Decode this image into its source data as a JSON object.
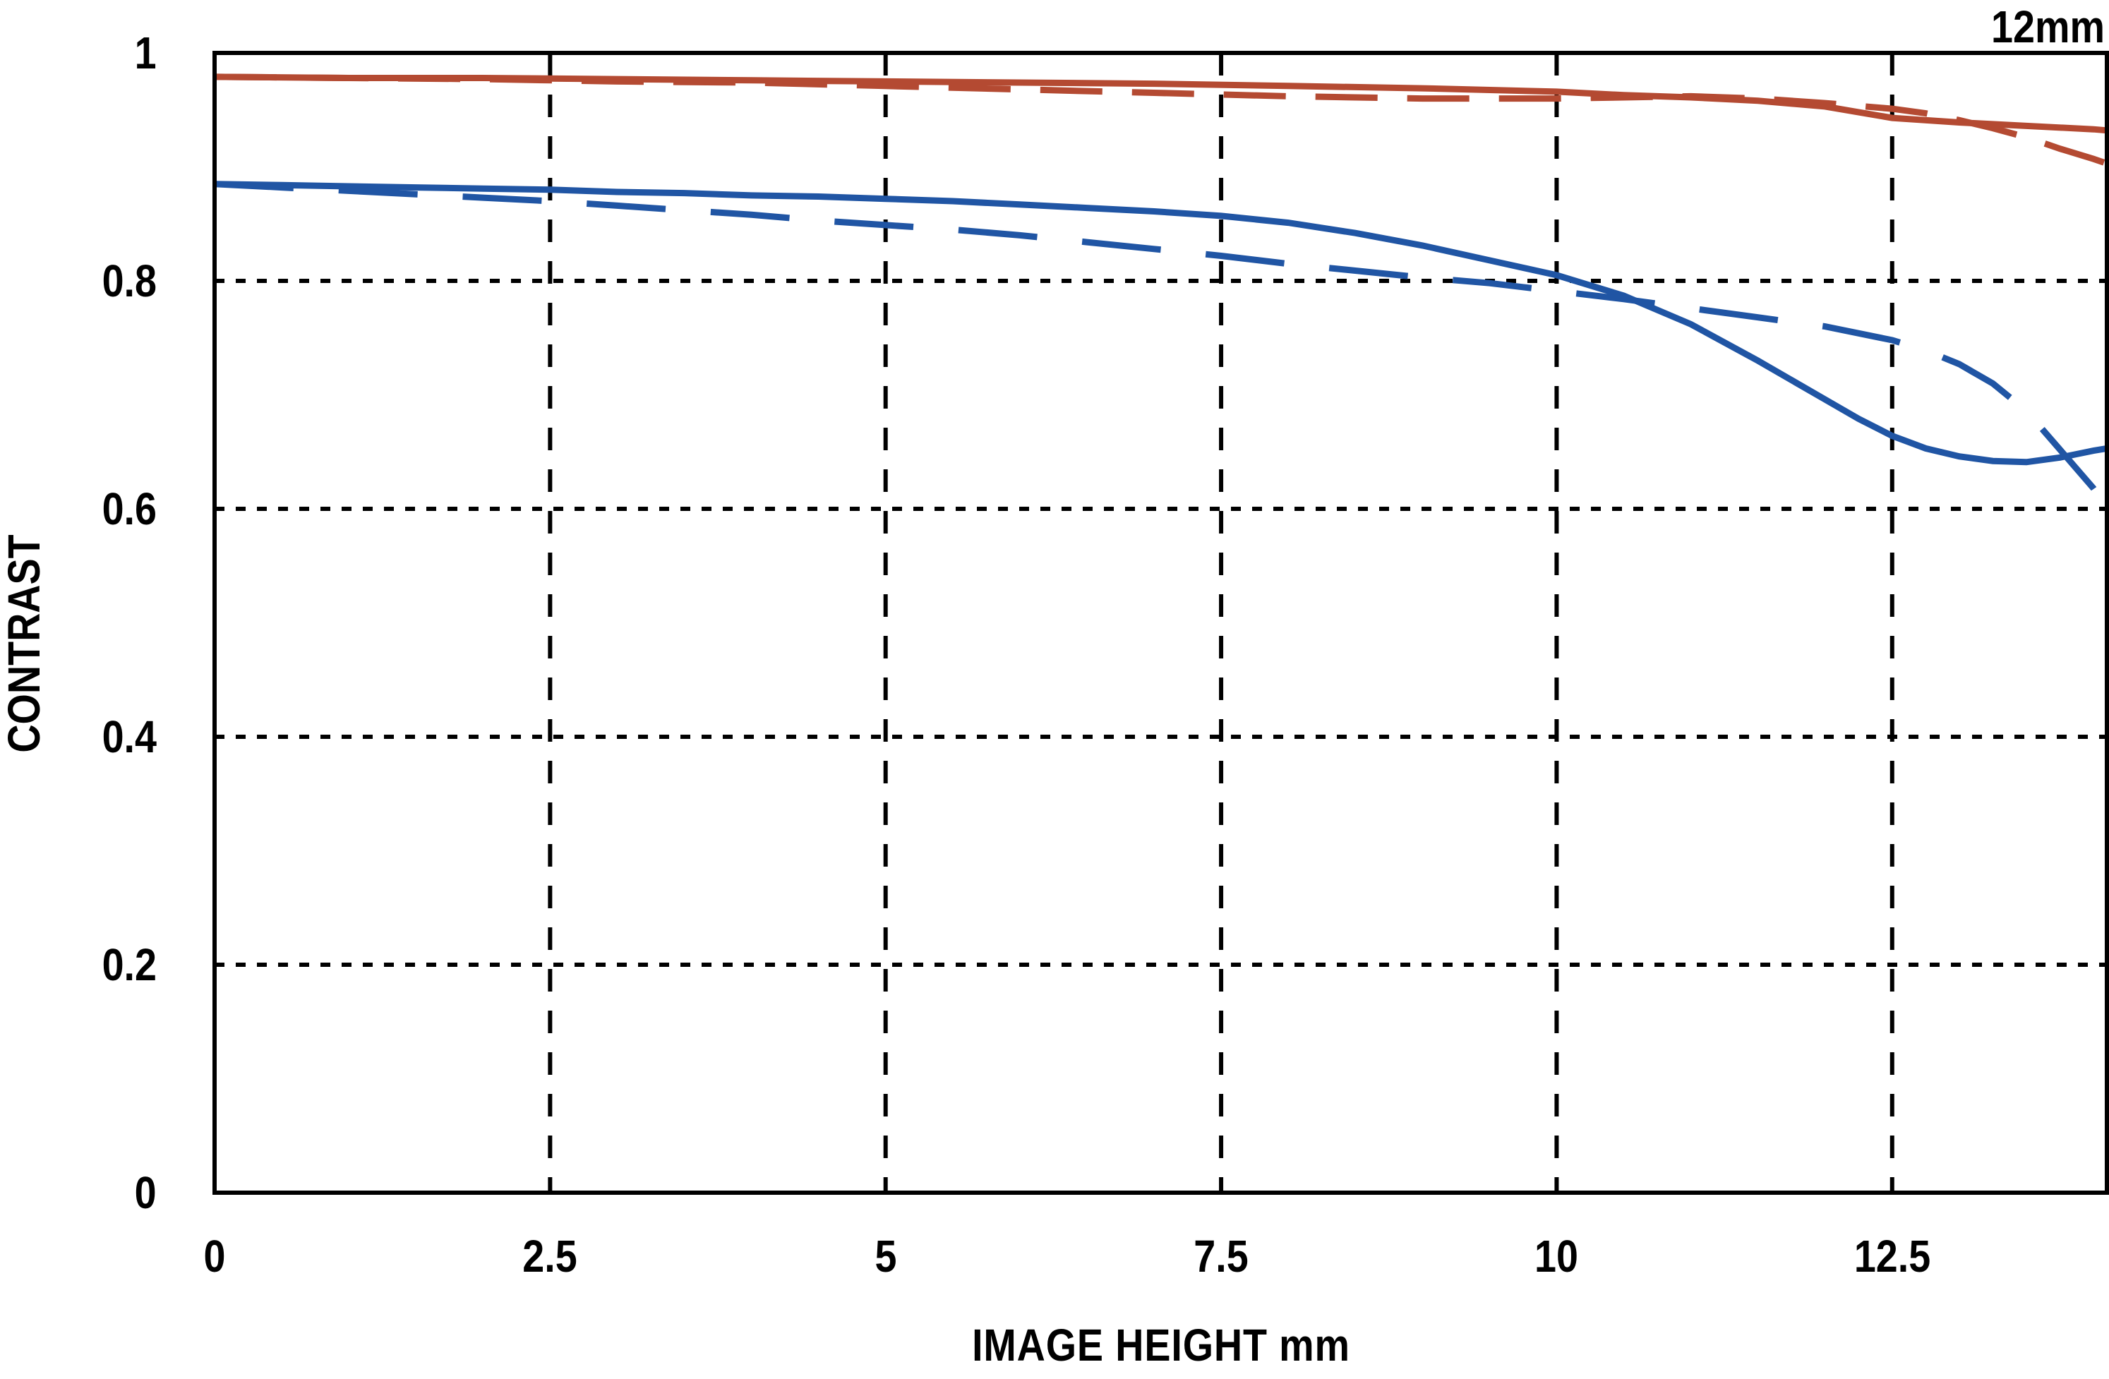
{
  "title": "12mm",
  "axes": {
    "x_label": "IMAGE HEIGHT  mm",
    "y_label": "CONTRAST",
    "x_tick_labels": [
      "0",
      "2.5",
      "5",
      "7.5",
      "10",
      "12.5"
    ],
    "y_tick_labels": [
      "0",
      "0.2",
      "0.4",
      "0.6",
      "0.8",
      "1"
    ]
  },
  "colors": {
    "red_curve": "#b44a32",
    "blue_curve": "#2055a4",
    "axis_and_text": "#000000",
    "background": "#ffffff"
  },
  "chart_data": {
    "type": "line",
    "title": "12mm",
    "xlabel": "IMAGE HEIGHT  mm",
    "ylabel": "CONTRAST",
    "xlim": [
      0,
      14.1
    ],
    "ylim": [
      0,
      1
    ],
    "xticks": [
      0,
      2.5,
      5,
      7.5,
      10,
      12.5
    ],
    "yticks": [
      0,
      0.2,
      0.4,
      0.6,
      0.8,
      1
    ],
    "grid": true,
    "legend_position": "none",
    "grid_style": {
      "vertical": "dashed",
      "horizontal": "dotted"
    },
    "series": [
      {
        "name": "red-solid",
        "color": "#b44a32",
        "dash": "solid",
        "x": [
          0,
          1,
          2,
          3,
          4,
          5,
          6,
          7,
          8,
          9,
          10,
          10.5,
          11,
          11.5,
          12,
          12.5,
          13,
          13.5,
          14,
          14.1
        ],
        "y": [
          0.979,
          0.978,
          0.978,
          0.977,
          0.976,
          0.975,
          0.974,
          0.973,
          0.971,
          0.969,
          0.966,
          0.963,
          0.961,
          0.958,
          0.953,
          0.943,
          0.939,
          0.936,
          0.933,
          0.932
        ]
      },
      {
        "name": "red-dashed",
        "color": "#b44a32",
        "dash": "dashed",
        "x": [
          0,
          1,
          2,
          3,
          4,
          5,
          6,
          7,
          8,
          9,
          10,
          10.5,
          11,
          11.5,
          12,
          12.5,
          12.75,
          13,
          13.25,
          13.5,
          13.75,
          14,
          14.1
        ],
        "y": [
          0.979,
          0.978,
          0.977,
          0.975,
          0.974,
          0.971,
          0.968,
          0.965,
          0.962,
          0.96,
          0.96,
          0.961,
          0.962,
          0.96,
          0.956,
          0.951,
          0.947,
          0.941,
          0.934,
          0.926,
          0.916,
          0.907,
          0.903
        ]
      },
      {
        "name": "blue-solid",
        "color": "#2055a4",
        "dash": "solid",
        "x": [
          0,
          0.5,
          1,
          1.5,
          2,
          2.5,
          3,
          3.5,
          4,
          4.5,
          5,
          5.5,
          6,
          6.5,
          7,
          7.5,
          8,
          8.5,
          9,
          9.5,
          10,
          10.5,
          11,
          11.5,
          12,
          12.25,
          12.5,
          12.75,
          13,
          13.25,
          13.5,
          13.75,
          14,
          14.1
        ],
        "y": [
          0.885,
          0.884,
          0.883,
          0.882,
          0.881,
          0.88,
          0.878,
          0.877,
          0.875,
          0.874,
          0.872,
          0.87,
          0.867,
          0.864,
          0.861,
          0.857,
          0.851,
          0.842,
          0.831,
          0.818,
          0.805,
          0.787,
          0.762,
          0.73,
          0.696,
          0.679,
          0.664,
          0.653,
          0.646,
          0.642,
          0.641,
          0.645,
          0.651,
          0.653
        ]
      },
      {
        "name": "blue-dashed",
        "color": "#2055a4",
        "dash": "dashed",
        "x": [
          0,
          0.5,
          1,
          1.5,
          2,
          2.5,
          3,
          3.5,
          4,
          4.5,
          5,
          5.5,
          6,
          6.5,
          7,
          7.5,
          8,
          8.5,
          9,
          9.5,
          10,
          10.5,
          11,
          11.5,
          12,
          12.5,
          12.75,
          13,
          13.25,
          13.5,
          13.75,
          14,
          14.1
        ],
        "y": [
          0.885,
          0.882,
          0.879,
          0.876,
          0.873,
          0.87,
          0.866,
          0.862,
          0.858,
          0.853,
          0.849,
          0.845,
          0.84,
          0.834,
          0.828,
          0.822,
          0.815,
          0.809,
          0.803,
          0.798,
          0.791,
          0.784,
          0.776,
          0.768,
          0.76,
          0.748,
          0.739,
          0.727,
          0.71,
          0.686,
          0.652,
          0.618,
          0.601
        ]
      }
    ]
  }
}
